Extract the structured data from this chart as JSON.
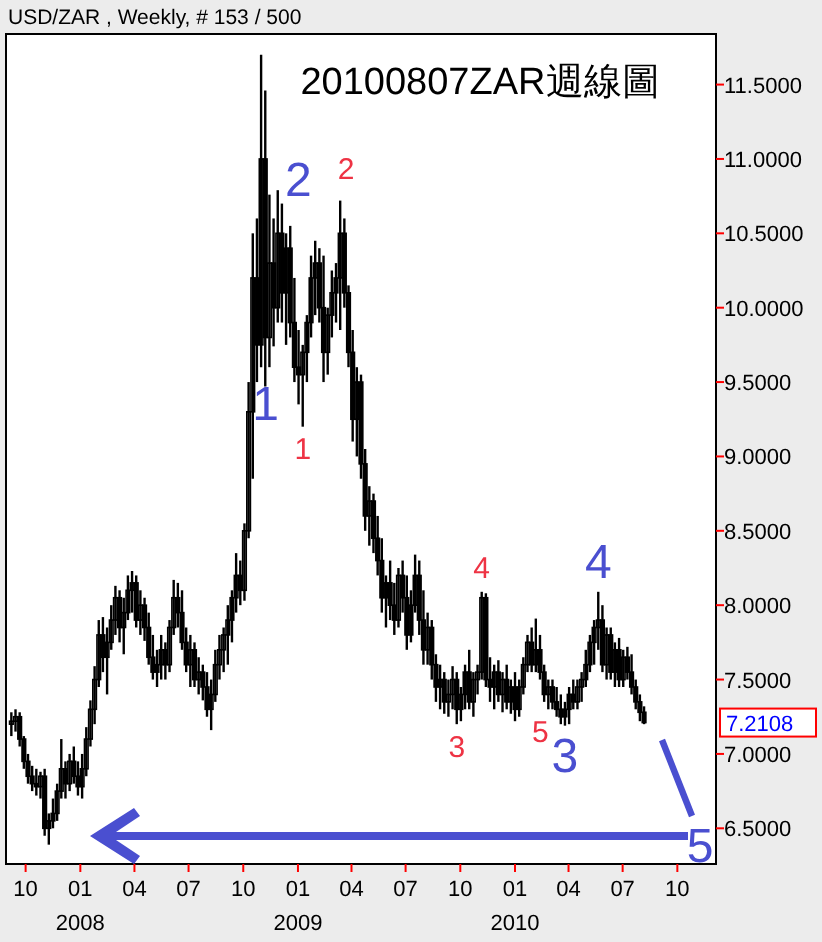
{
  "chart_data": {
    "type": "candlestick",
    "title": "20100807ZAR週線圖",
    "subtitle": "USD/ZAR , Weekly, # 153 / 500",
    "xlim": [
      "2007-08-29",
      "2010-12-05"
    ],
    "ylim": [
      6.26,
      11.84
    ],
    "xticks": [
      {
        "value": "2007-10-01",
        "label": "10"
      },
      {
        "value": "2008-01-01",
        "label": "01\n2008"
      },
      {
        "value": "2008-04-01",
        "label": "04"
      },
      {
        "value": "2008-07-01",
        "label": "07"
      },
      {
        "value": "2008-10-01",
        "label": "10"
      },
      {
        "value": "2009-01-01",
        "label": "01\n2009"
      },
      {
        "value": "2009-04-01",
        "label": "04"
      },
      {
        "value": "2009-07-01",
        "label": "07"
      },
      {
        "value": "2009-10-01",
        "label": "10"
      },
      {
        "value": "2010-01-01",
        "label": "01\n2010"
      },
      {
        "value": "2010-04-01",
        "label": "04"
      },
      {
        "value": "2010-07-01",
        "label": "07"
      },
      {
        "value": "2010-10-01",
        "label": "10"
      }
    ],
    "yticks": [
      {
        "value": 6.5,
        "label": "6.5000"
      },
      {
        "value": 7,
        "label": "7.0000"
      },
      {
        "value": 7.5,
        "label": "7.5000"
      },
      {
        "value": 8,
        "label": "8.0000"
      },
      {
        "value": 8.5,
        "label": "8.5000"
      },
      {
        "value": 9,
        "label": "9.0000"
      },
      {
        "value": 9.5,
        "label": "9.5000"
      },
      {
        "value": 10,
        "label": "10.0000"
      },
      {
        "value": 10.5,
        "label": "10.5000"
      },
      {
        "value": 11,
        "label": "11.0000"
      },
      {
        "value": 11.5,
        "label": "11.5000"
      }
    ],
    "annotations": [
      {
        "text": "2",
        "x": "2008-12-19",
        "y": 10.55
      },
      {
        "text": "1",
        "x": "2008-11-21",
        "y": 9.74
      },
      {
        "text": "2",
        "x": "2009-03-13",
        "y": 10.72
      },
      {
        "text": "1",
        "x": "2009-01-09",
        "y": 9.2
      },
      {
        "text": "4",
        "x": "2009-11-06",
        "y": 8.09
      },
      {
        "text": "3",
        "x": "2009-09-25",
        "y": 7.2
      },
      {
        "text": "5",
        "x": "2010-02-26",
        "y": 7.3
      },
      {
        "text": "4",
        "x": "2010-05-21",
        "y": 8.09
      },
      {
        "text": "3",
        "x": "2010-03-26",
        "y": 7.19
      },
      "5",
      "7.2108"
    ],
    "x": [
      "2007-09-07",
      "2007-09-14",
      "2007-09-21",
      "2007-09-28",
      "2007-10-05",
      "2007-10-12",
      "2007-10-19",
      "2007-10-26",
      "2007-11-02",
      "2007-11-09",
      "2007-11-16",
      "2007-11-23",
      "2007-11-30",
      "2007-12-07",
      "2007-12-14",
      "2007-12-21",
      "2007-12-28",
      "2008-01-04",
      "2008-01-11",
      "2008-01-18",
      "2008-01-25",
      "2008-02-01",
      "2008-02-08",
      "2008-02-15",
      "2008-02-22",
      "2008-02-29",
      "2008-03-07",
      "2008-03-14",
      "2008-03-21",
      "2008-03-28",
      "2008-04-04",
      "2008-04-11",
      "2008-04-18",
      "2008-04-25",
      "2008-05-02",
      "2008-05-09",
      "2008-05-16",
      "2008-05-23",
      "2008-05-30",
      "2008-06-06",
      "2008-06-13",
      "2008-06-20",
      "2008-06-27",
      "2008-07-04",
      "2008-07-11",
      "2008-07-18",
      "2008-07-25",
      "2008-08-01",
      "2008-08-08",
      "2008-08-15",
      "2008-08-22",
      "2008-08-29",
      "2008-09-05",
      "2008-09-12",
      "2008-09-19",
      "2008-09-26",
      "2008-10-03",
      "2008-10-10",
      "2008-10-17",
      "2008-10-24",
      "2008-10-31",
      "2008-11-07",
      "2008-11-14",
      "2008-11-21",
      "2008-11-28",
      "2008-12-05",
      "2008-12-12",
      "2008-12-19",
      "2008-12-26",
      "2009-01-02",
      "2009-01-09",
      "2009-01-16",
      "2009-01-23",
      "2009-01-30",
      "2009-02-06",
      "2009-02-13",
      "2009-02-20",
      "2009-02-27",
      "2009-03-06",
      "2009-03-13",
      "2009-03-20",
      "2009-03-27",
      "2009-04-03",
      "2009-04-10",
      "2009-04-17",
      "2009-04-24",
      "2009-05-01",
      "2009-05-08",
      "2009-05-15",
      "2009-05-22",
      "2009-05-29",
      "2009-06-05",
      "2009-06-12",
      "2009-06-19",
      "2009-06-26",
      "2009-07-03",
      "2009-07-10",
      "2009-07-17",
      "2009-07-24",
      "2009-07-31",
      "2009-08-07",
      "2009-08-14",
      "2009-08-21",
      "2009-08-28",
      "2009-09-04",
      "2009-09-11",
      "2009-09-18",
      "2009-09-25",
      "2009-10-02",
      "2009-10-09",
      "2009-10-16",
      "2009-10-23",
      "2009-10-30",
      "2009-11-06",
      "2009-11-13",
      "2009-11-20",
      "2009-11-27",
      "2009-12-04",
      "2009-12-11",
      "2009-12-18",
      "2009-12-25",
      "2010-01-01",
      "2010-01-08",
      "2010-01-15",
      "2010-01-22",
      "2010-01-29",
      "2010-02-05",
      "2010-02-12",
      "2010-02-19",
      "2010-02-26",
      "2010-03-05",
      "2010-03-12",
      "2010-03-19",
      "2010-03-26",
      "2010-04-02",
      "2010-04-09",
      "2010-04-16",
      "2010-04-23",
      "2010-04-30",
      "2010-05-07",
      "2010-05-14",
      "2010-05-21",
      "2010-05-28",
      "2010-06-04",
      "2010-06-11",
      "2010-06-18",
      "2010-06-25",
      "2010-07-02",
      "2010-07-09",
      "2010-07-16",
      "2010-07-23",
      "2010-07-30",
      "2010-08-06"
    ],
    "ohlc": [
      [
        7.2,
        7.28,
        7.12,
        7.22
      ],
      [
        7.22,
        7.3,
        7.15,
        7.25
      ],
      [
        7.25,
        7.28,
        7.05,
        7.1
      ],
      [
        7.1,
        7.12,
        6.9,
        6.95
      ],
      [
        6.95,
        7.0,
        6.8,
        6.85
      ],
      [
        6.85,
        6.92,
        6.75,
        6.8
      ],
      [
        6.8,
        6.9,
        6.72,
        6.78
      ],
      [
        6.78,
        6.88,
        6.7,
        6.85
      ],
      [
        6.85,
        6.9,
        6.45,
        6.5
      ],
      [
        6.5,
        6.6,
        6.39,
        6.55
      ],
      [
        6.55,
        6.7,
        6.5,
        6.6
      ],
      [
        6.6,
        6.8,
        6.55,
        6.75
      ],
      [
        6.75,
        7.1,
        6.7,
        6.9
      ],
      [
        6.9,
        6.95,
        6.7,
        6.8
      ],
      [
        6.8,
        7.0,
        6.75,
        6.95
      ],
      [
        6.95,
        7.05,
        6.8,
        6.85
      ],
      [
        6.85,
        6.95,
        6.72,
        6.78
      ],
      [
        6.78,
        7.0,
        6.7,
        6.9
      ],
      [
        6.9,
        7.18,
        6.85,
        7.1
      ],
      [
        7.1,
        7.36,
        7.05,
        7.3
      ],
      [
        7.3,
        7.59,
        7.2,
        7.5
      ],
      [
        7.5,
        7.9,
        7.45,
        7.8
      ],
      [
        7.8,
        7.92,
        7.55,
        7.65
      ],
      [
        7.65,
        7.85,
        7.4,
        7.75
      ],
      [
        7.75,
        8.0,
        7.7,
        7.9
      ],
      [
        7.9,
        8.13,
        7.8,
        8.05
      ],
      [
        8.05,
        8.1,
        7.75,
        7.85
      ],
      [
        7.85,
        8.05,
        7.67,
        7.95
      ],
      [
        7.95,
        8.2,
        7.9,
        8.1
      ],
      [
        8.1,
        8.23,
        7.95,
        8.15
      ],
      [
        8.15,
        8.2,
        7.85,
        7.9
      ],
      [
        7.9,
        8.1,
        7.8,
        8.0
      ],
      [
        8.0,
        8.05,
        7.76,
        7.85
      ],
      [
        7.85,
        7.95,
        7.6,
        7.65
      ],
      [
        7.65,
        7.8,
        7.5,
        7.55
      ],
      [
        7.55,
        7.7,
        7.45,
        7.6
      ],
      [
        7.6,
        7.8,
        7.5,
        7.7
      ],
      [
        7.7,
        7.75,
        7.5,
        7.6
      ],
      [
        7.6,
        7.9,
        7.55,
        7.85
      ],
      [
        7.85,
        8.17,
        7.8,
        8.05
      ],
      [
        8.05,
        8.15,
        7.85,
        7.95
      ],
      [
        7.95,
        8.1,
        7.7,
        7.75
      ],
      [
        7.75,
        7.85,
        7.55,
        7.6
      ],
      [
        7.6,
        7.8,
        7.45,
        7.7
      ],
      [
        7.7,
        7.75,
        7.45,
        7.5
      ],
      [
        7.5,
        7.65,
        7.4,
        7.55
      ],
      [
        7.55,
        7.6,
        7.36,
        7.45
      ],
      [
        7.45,
        7.55,
        7.25,
        7.3
      ],
      [
        7.3,
        7.5,
        7.16,
        7.4
      ],
      [
        7.4,
        7.7,
        7.35,
        7.6
      ],
      [
        7.6,
        7.8,
        7.5,
        7.7
      ],
      [
        7.7,
        7.85,
        7.55,
        7.8
      ],
      [
        7.8,
        8.0,
        7.6,
        7.9
      ],
      [
        7.9,
        8.1,
        7.75,
        8.05
      ],
      [
        8.05,
        8.35,
        7.95,
        8.2
      ],
      [
        8.2,
        8.3,
        8.0,
        8.1
      ],
      [
        8.1,
        8.55,
        8.03,
        8.5
      ],
      [
        8.5,
        9.5,
        8.45,
        9.3
      ],
      [
        9.3,
        10.5,
        8.85,
        10.2
      ],
      [
        10.2,
        10.6,
        9.5,
        9.75
      ],
      [
        9.75,
        11.7,
        9.6,
        11.0
      ],
      [
        11.0,
        11.46,
        9.47,
        9.8
      ],
      [
        9.8,
        10.76,
        9.6,
        10.3
      ],
      [
        10.3,
        10.6,
        9.74,
        10.0
      ],
      [
        10.0,
        10.79,
        9.9,
        10.5
      ],
      [
        10.5,
        10.7,
        9.9,
        10.1
      ],
      [
        10.1,
        10.5,
        9.75,
        10.4
      ],
      [
        10.4,
        10.55,
        9.8,
        9.9
      ],
      [
        9.9,
        10.2,
        9.5,
        9.6
      ],
      [
        9.6,
        9.85,
        9.35,
        9.55
      ],
      [
        9.55,
        9.75,
        9.2,
        9.7
      ],
      [
        9.7,
        9.95,
        9.5,
        9.9
      ],
      [
        9.9,
        10.35,
        9.8,
        10.2
      ],
      [
        10.2,
        10.45,
        9.95,
        10.3
      ],
      [
        10.3,
        10.4,
        9.9,
        10.0
      ],
      [
        10.0,
        10.35,
        9.5,
        9.7
      ],
      [
        9.7,
        10.0,
        9.55,
        9.95
      ],
      [
        9.95,
        10.25,
        9.8,
        10.1
      ],
      [
        10.1,
        10.3,
        9.9,
        10.2
      ],
      [
        10.2,
        10.72,
        9.85,
        10.5
      ],
      [
        10.5,
        10.6,
        10.0,
        10.1
      ],
      [
        10.1,
        10.15,
        9.6,
        9.7
      ],
      [
        9.7,
        9.85,
        9.1,
        9.25
      ],
      [
        9.25,
        9.6,
        9.0,
        9.5
      ],
      [
        9.5,
        9.55,
        8.85,
        8.95
      ],
      [
        8.95,
        9.05,
        8.5,
        8.6
      ],
      [
        8.6,
        8.8,
        8.4,
        8.7
      ],
      [
        8.7,
        8.75,
        8.35,
        8.45
      ],
      [
        8.45,
        8.6,
        8.2,
        8.3
      ],
      [
        8.3,
        8.45,
        7.95,
        8.05
      ],
      [
        8.05,
        8.2,
        7.85,
        8.15
      ],
      [
        8.15,
        8.3,
        7.9,
        8.0
      ],
      [
        8.0,
        8.15,
        7.8,
        7.9
      ],
      [
        7.9,
        8.25,
        7.85,
        8.2
      ],
      [
        8.2,
        8.3,
        7.95,
        8.05
      ],
      [
        8.05,
        8.2,
        7.7,
        7.8
      ],
      [
        7.8,
        8.1,
        7.75,
        8.0
      ],
      [
        8.0,
        8.34,
        7.95,
        8.2
      ],
      [
        8.2,
        8.3,
        7.8,
        7.9
      ],
      [
        7.9,
        8.1,
        7.6,
        7.7
      ],
      [
        7.7,
        7.95,
        7.6,
        7.85
      ],
      [
        7.85,
        7.9,
        7.5,
        7.6
      ],
      [
        7.6,
        7.67,
        7.35,
        7.45
      ],
      [
        7.45,
        7.6,
        7.3,
        7.5
      ],
      [
        7.5,
        7.55,
        7.27,
        7.35
      ],
      [
        7.35,
        7.5,
        7.25,
        7.4
      ],
      [
        7.4,
        7.59,
        7.3,
        7.5
      ],
      [
        7.5,
        7.55,
        7.2,
        7.3
      ],
      [
        7.3,
        7.45,
        7.22,
        7.4
      ],
      [
        7.4,
        7.6,
        7.3,
        7.55
      ],
      [
        7.55,
        7.7,
        7.3,
        7.35
      ],
      [
        7.35,
        7.55,
        7.25,
        7.5
      ],
      [
        7.5,
        7.6,
        7.4,
        7.55
      ],
      [
        7.55,
        8.09,
        7.5,
        8.05
      ],
      [
        8.05,
        8.08,
        7.45,
        7.5
      ],
      [
        7.5,
        7.65,
        7.35,
        7.45
      ],
      [
        7.45,
        7.6,
        7.3,
        7.55
      ],
      [
        7.55,
        7.63,
        7.35,
        7.4
      ],
      [
        7.4,
        7.55,
        7.28,
        7.5
      ],
      [
        7.5,
        7.6,
        7.3,
        7.35
      ],
      [
        7.35,
        7.5,
        7.27,
        7.45
      ],
      [
        7.45,
        7.55,
        7.22,
        7.3
      ],
      [
        7.3,
        7.5,
        7.25,
        7.45
      ],
      [
        7.45,
        7.65,
        7.4,
        7.6
      ],
      [
        7.6,
        7.8,
        7.55,
        7.75
      ],
      [
        7.75,
        7.85,
        7.55,
        7.6
      ],
      [
        7.6,
        7.91,
        7.55,
        7.7
      ],
      [
        7.7,
        7.8,
        7.5,
        7.55
      ],
      [
        7.55,
        7.6,
        7.35,
        7.4
      ],
      [
        7.4,
        7.5,
        7.3,
        7.45
      ],
      [
        7.45,
        7.5,
        7.3,
        7.35
      ],
      [
        7.35,
        7.45,
        7.25,
        7.3
      ],
      [
        7.3,
        7.4,
        7.2,
        7.25
      ],
      [
        7.25,
        7.35,
        7.19,
        7.3
      ],
      [
        7.3,
        7.45,
        7.2,
        7.4
      ],
      [
        7.4,
        7.5,
        7.3,
        7.35
      ],
      [
        7.35,
        7.5,
        7.3,
        7.45
      ],
      [
        7.45,
        7.55,
        7.35,
        7.5
      ],
      [
        7.5,
        7.7,
        7.45,
        7.6
      ],
      [
        7.6,
        7.8,
        7.55,
        7.75
      ],
      [
        7.75,
        7.9,
        7.6,
        7.85
      ],
      [
        7.85,
        8.09,
        7.7,
        7.9
      ],
      [
        7.9,
        8.0,
        7.55,
        7.6
      ],
      [
        7.6,
        7.85,
        7.5,
        7.8
      ],
      [
        7.8,
        7.85,
        7.5,
        7.55
      ],
      [
        7.55,
        7.75,
        7.45,
        7.7
      ],
      [
        7.7,
        7.78,
        7.45,
        7.5
      ],
      [
        7.5,
        7.7,
        7.45,
        7.65
      ],
      [
        7.65,
        7.72,
        7.5,
        7.55
      ],
      [
        7.55,
        7.67,
        7.4,
        7.45
      ],
      [
        7.45,
        7.5,
        7.3,
        7.35
      ],
      [
        7.35,
        7.4,
        7.22,
        7.28
      ],
      [
        7.28,
        7.32,
        7.2,
        7.2108
      ]
    ]
  }
}
